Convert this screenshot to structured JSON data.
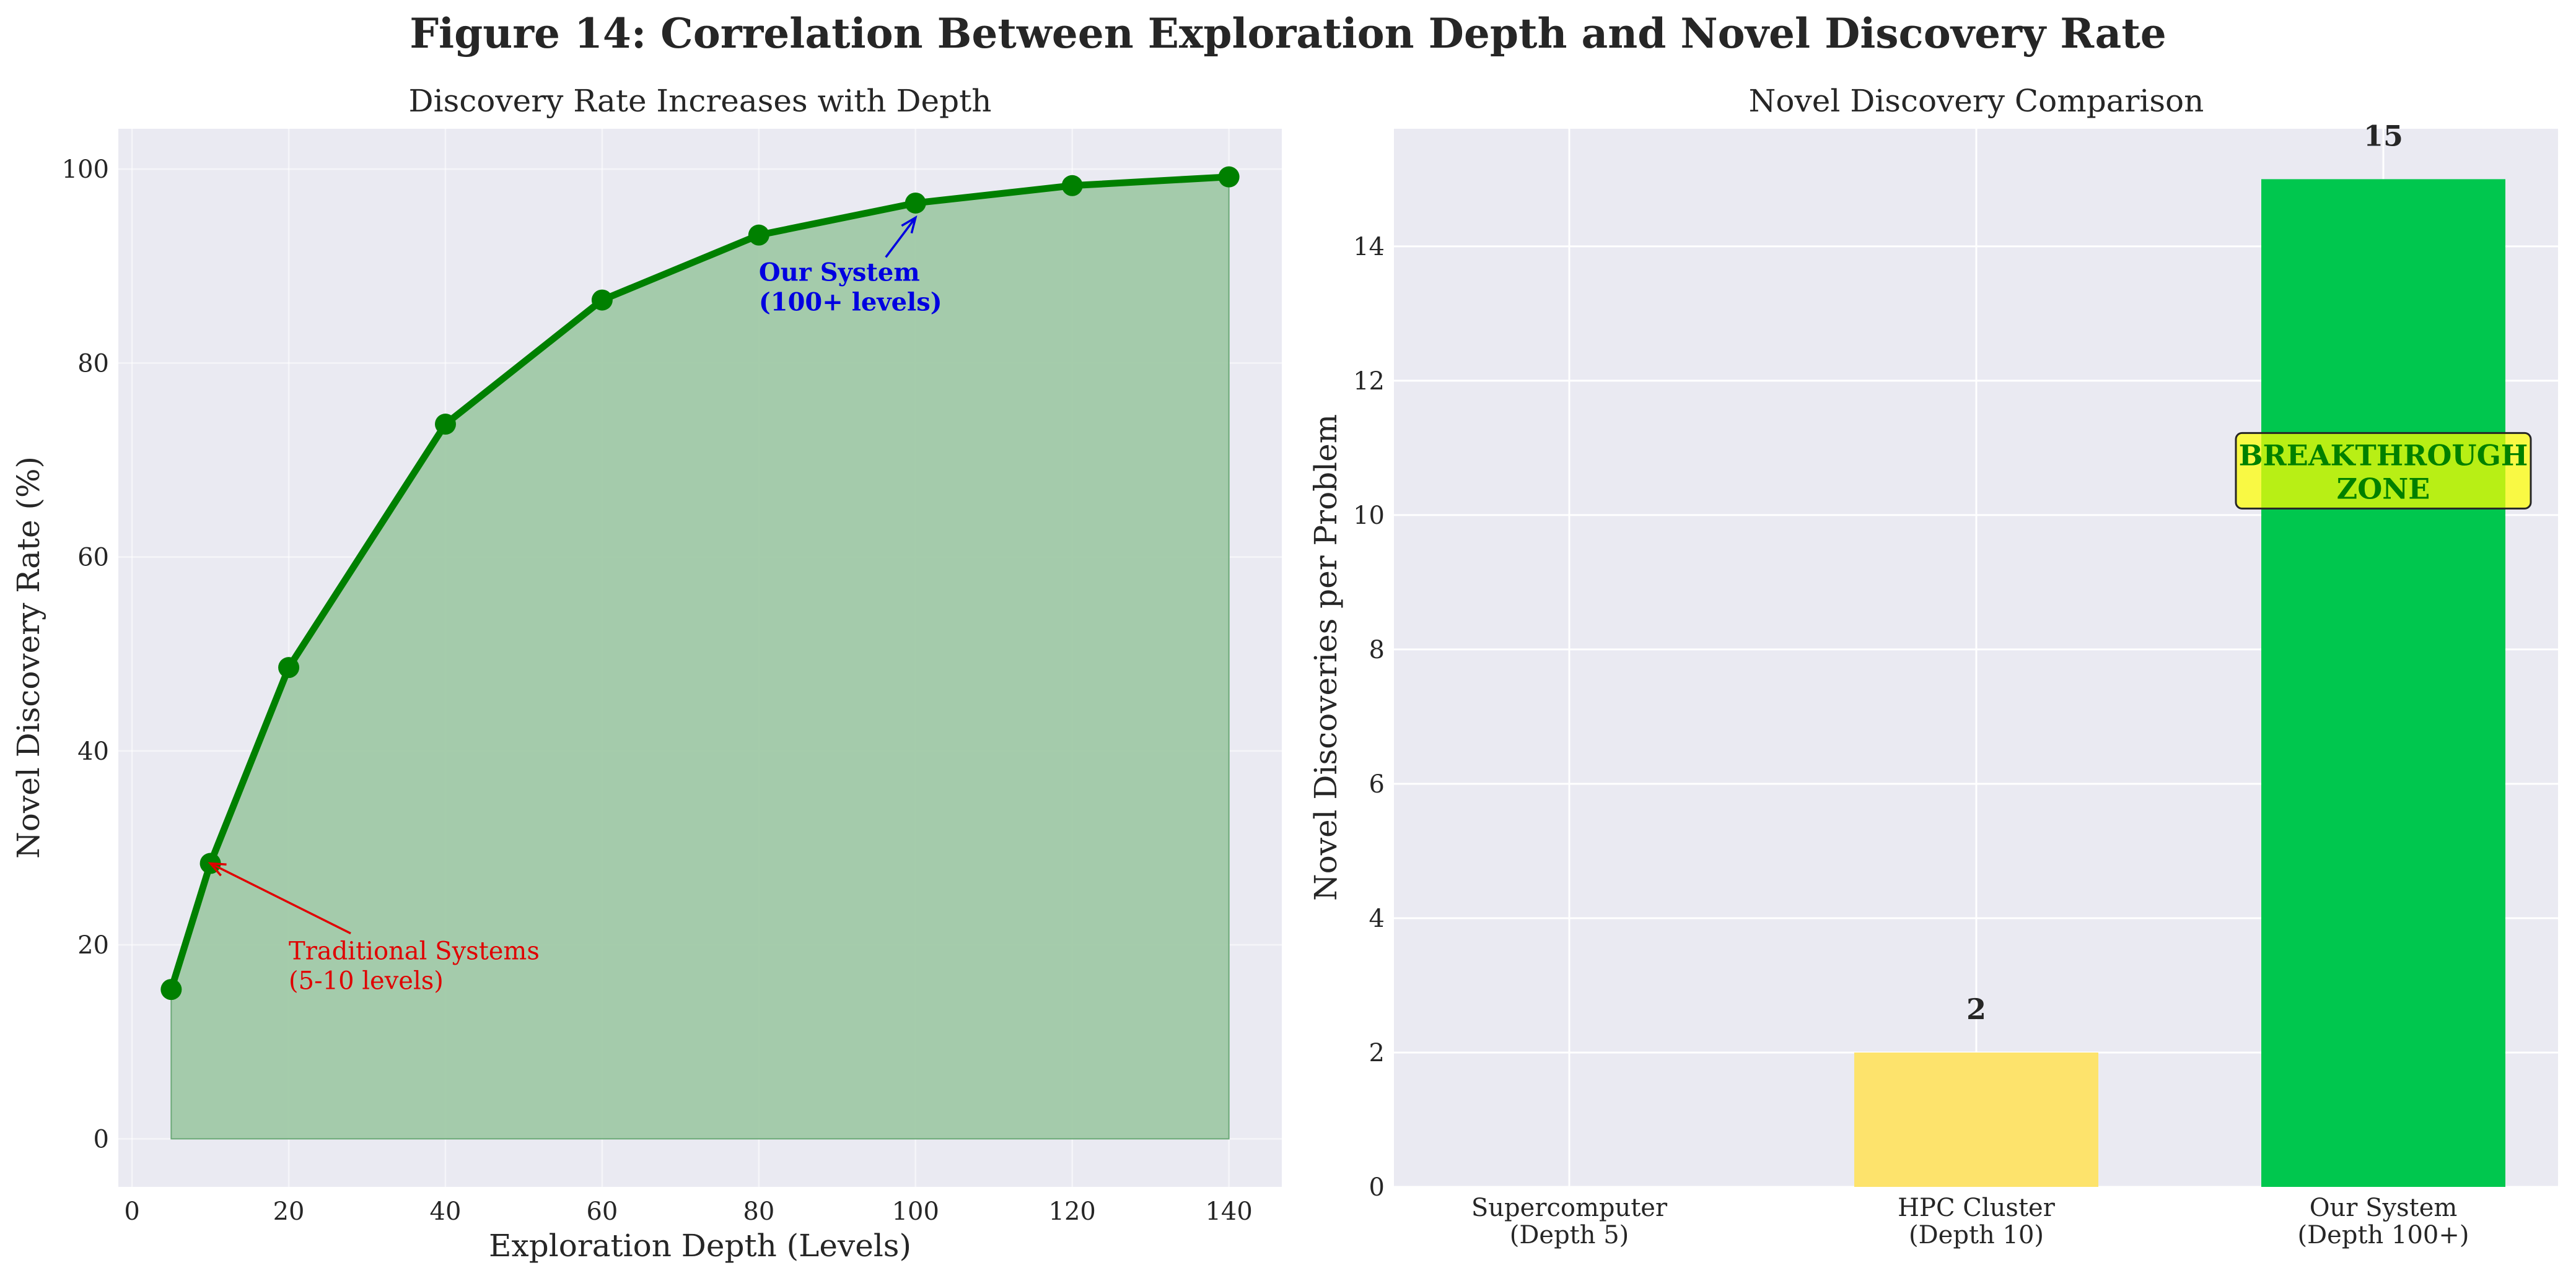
{
  "figure": {
    "title": "Figure 14: Correlation Between Exploration Depth and Novel Discovery Rate"
  },
  "chart_data": [
    {
      "type": "line",
      "title": "Discovery Rate Increases with Depth",
      "xlabel": "Exploration Depth (Levels)",
      "ylabel": "Novel Discovery Rate (%)",
      "x": [
        5,
        10,
        20,
        40,
        60,
        80,
        100,
        120,
        140
      ],
      "y": [
        15.4,
        28.4,
        48.6,
        73.7,
        86.5,
        93.2,
        96.5,
        98.3,
        99.2
      ],
      "xlim": [
        -1.75,
        146.75
      ],
      "ylim": [
        -4.96,
        104.16
      ],
      "xticks": [
        0,
        20,
        40,
        60,
        80,
        100,
        120,
        140
      ],
      "yticks": [
        0,
        20,
        40,
        60,
        80,
        100
      ],
      "fill_under": true,
      "grid": true,
      "line_color": "#008000",
      "fill_color": "#a0c9a7",
      "annotations": [
        {
          "lines": [
            "Traditional Systems",
            "(5-10 levels)"
          ],
          "color": "#e00000",
          "text_at": [
            20,
            18.5
          ],
          "arrow_to": [
            10,
            28.4
          ]
        },
        {
          "lines": [
            "Our System",
            "(100+ levels)"
          ],
          "color": "#0000e0",
          "text_at": [
            80,
            88.5
          ],
          "arrow_to": [
            100,
            95
          ]
        }
      ]
    },
    {
      "type": "bar",
      "title": "Novel Discovery Comparison",
      "xlabel": "",
      "ylabel": "Novel Discoveries per Problem",
      "categories": [
        [
          "Supercomputer",
          "(Depth 5)"
        ],
        [
          "HPC Cluster",
          "(Depth 10)"
        ],
        [
          "Our System",
          "(Depth 100+)"
        ]
      ],
      "values": [
        0,
        2,
        15
      ],
      "value_labels": [
        "",
        "2",
        "15"
      ],
      "colors": [
        "#dddddd",
        "#fde36c",
        "#00c74e"
      ],
      "ylim": [
        0,
        15.75
      ],
      "yticks": [
        0,
        2,
        4,
        6,
        8,
        10,
        12,
        14
      ],
      "grid": true,
      "zone_label": [
        "BREAKTHROUGH",
        "ZONE"
      ],
      "zone_at": [
        2,
        10.3
      ],
      "zone_fill": "#ffff00",
      "zone_text_color": "#008000"
    }
  ]
}
